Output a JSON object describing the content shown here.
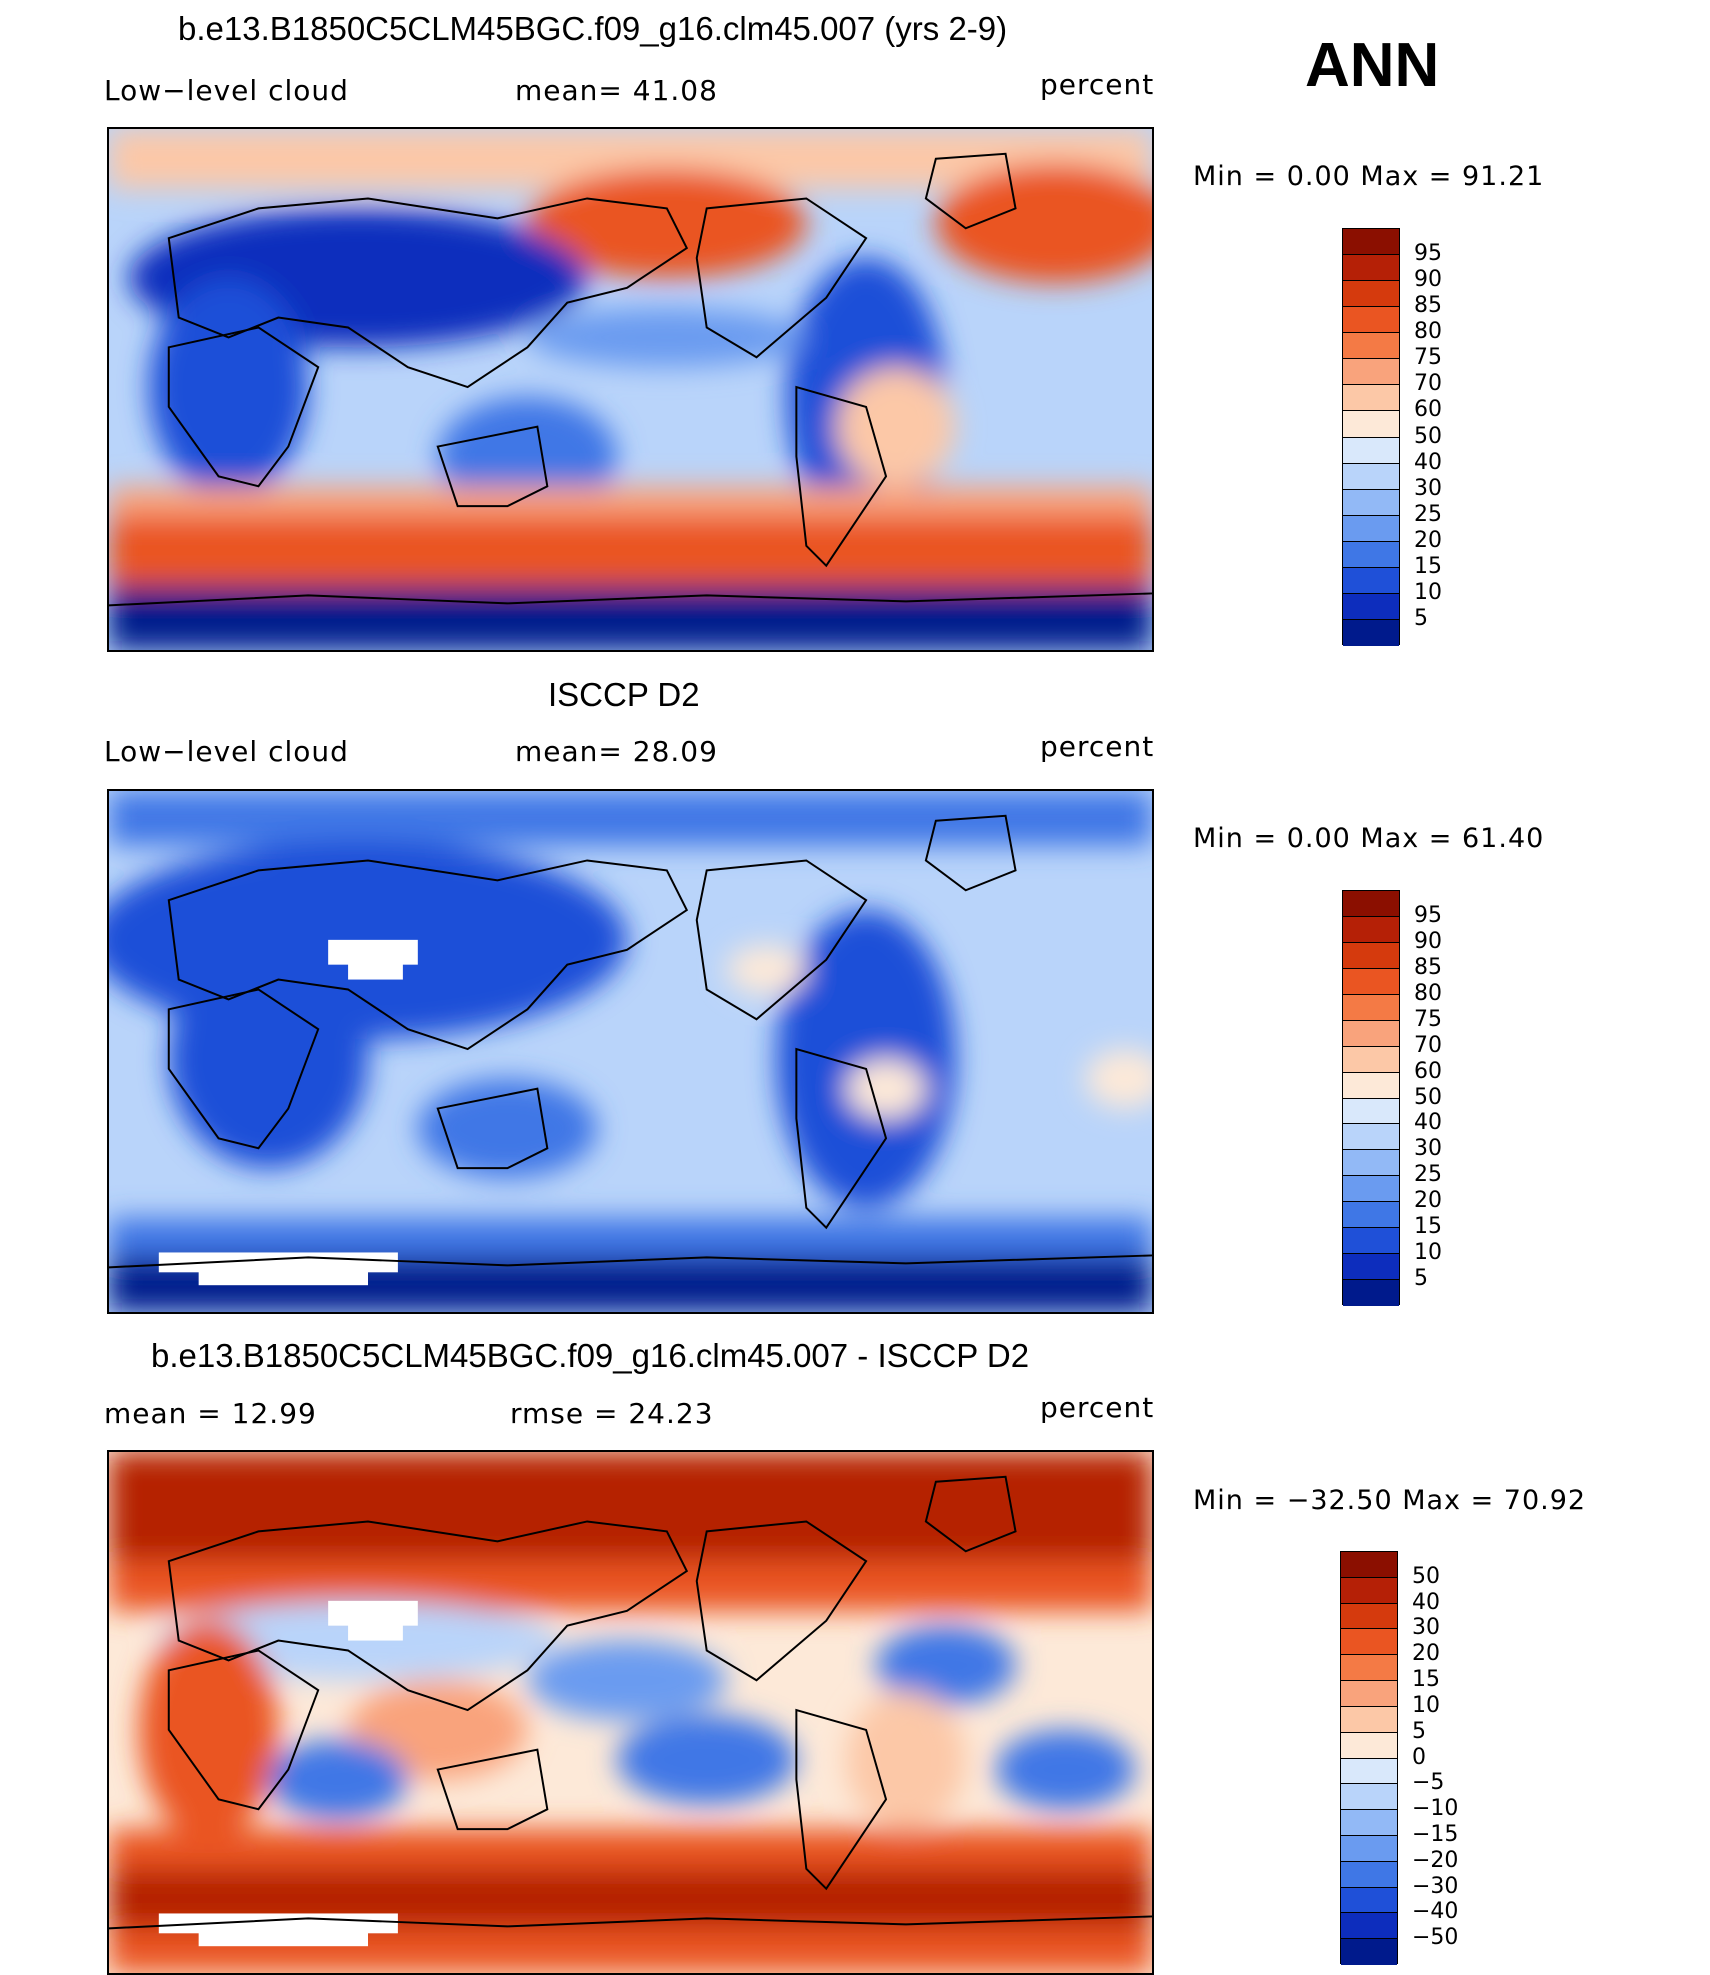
{
  "panels": [
    {
      "title": "b.e13.B1850C5CLM45BGC.f09_g16.clm45.007 (yrs 2-9)",
      "left_label": "Low−level cloud",
      "mid_label": "mean=   41.08",
      "units": "percent",
      "min_max": "Min  =      0.00  Max  =     91.21",
      "map": {
        "field": "model low-level cloud fraction (annual)",
        "style": "warm"
      }
    },
    {
      "title": "ISCCP D2",
      "left_label": "Low−level cloud",
      "mid_label": "mean=   28.09",
      "units": "percent",
      "min_max": "Min  =      0.00  Max  =     61.40",
      "map": {
        "field": "observed low-level cloud fraction (annual)",
        "style": "cool"
      }
    },
    {
      "title": "b.e13.B1850C5CLM45BGC.f09_g16.clm45.007 - ISCCP D2",
      "left_label": "mean  =     12.99",
      "mid_label": "rmse  =     24.23",
      "units": "percent",
      "min_max": "Min  =  −32.50  Max  =     70.92",
      "map": {
        "field": "difference model minus observations",
        "style": "diff"
      }
    }
  ],
  "season_label": "ANN",
  "colorbars": [
    {
      "labels": [
        "95",
        "90",
        "85",
        "80",
        "75",
        "70",
        "60",
        "50",
        "40",
        "30",
        "25",
        "20",
        "15",
        "10",
        "5"
      ],
      "colors": [
        "#8b0f00",
        "#b52006",
        "#d53a0d",
        "#ea5522",
        "#f47a45",
        "#f9a37c",
        "#fcc8a7",
        "#fde9d8",
        "#d9e8fb",
        "#b9d4fa",
        "#92b9f6",
        "#6a9bf0",
        "#3f77e6",
        "#1f50d8",
        "#0d2dbd",
        "#001a8c"
      ]
    },
    {
      "labels": [
        "95",
        "90",
        "85",
        "80",
        "75",
        "70",
        "60",
        "50",
        "40",
        "30",
        "25",
        "20",
        "15",
        "10",
        "5"
      ],
      "colors": [
        "#8b0f00",
        "#b52006",
        "#d53a0d",
        "#ea5522",
        "#f47a45",
        "#f9a37c",
        "#fcc8a7",
        "#fde9d8",
        "#d9e8fb",
        "#b9d4fa",
        "#92b9f6",
        "#6a9bf0",
        "#3f77e6",
        "#1f50d8",
        "#0d2dbd",
        "#001a8c"
      ]
    },
    {
      "labels": [
        "50",
        "40",
        "30",
        "20",
        "15",
        "10",
        "5",
        "0",
        "−5",
        "−10",
        "−15",
        "−20",
        "−30",
        "−40",
        "−50"
      ],
      "colors": [
        "#8b0f00",
        "#b52006",
        "#d53a0d",
        "#ea5522",
        "#f47a45",
        "#f9a37c",
        "#fcc8a7",
        "#fde9d8",
        "#d9e8fb",
        "#b9d4fa",
        "#92b9f6",
        "#6a9bf0",
        "#3f77e6",
        "#1f50d8",
        "#0d2dbd",
        "#001a8c"
      ]
    }
  ]
}
